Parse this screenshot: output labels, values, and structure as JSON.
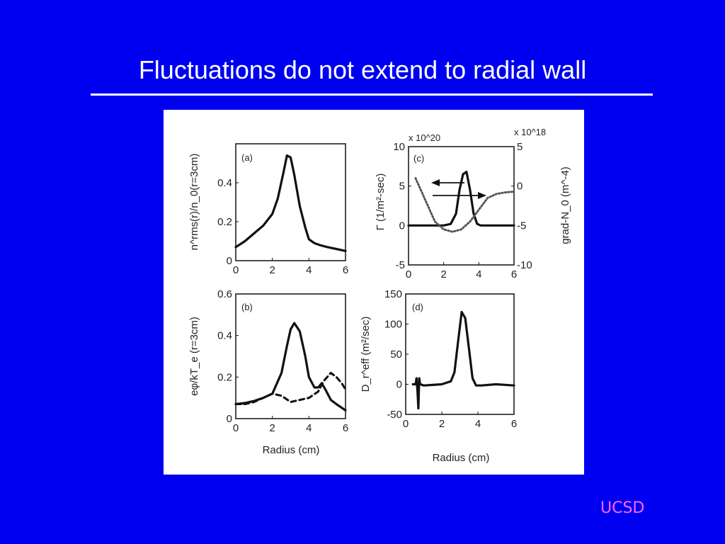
{
  "slide": {
    "title": "Fluctuations do not extend to radial wall",
    "footer_logo": "UCSD",
    "colors": {
      "background": "#0000f0",
      "title": "#ffffff",
      "logo": "#ff66ff",
      "panel": "#ffffff"
    }
  },
  "chart_data": [
    {
      "panel_label": "(a)",
      "type": "line",
      "xlabel": "",
      "ylabel": "n^rms(r)/n_0(r=3cm)",
      "xlim": [
        0,
        6
      ],
      "ylim": [
        0,
        0.6
      ],
      "xticks": [
        0,
        2,
        4,
        6
      ],
      "yticks": [
        0,
        0.2,
        0.4
      ],
      "xtick_labels": [
        "0",
        "2",
        "4",
        "6"
      ],
      "ytick_labels": [
        "0",
        "0.2",
        "0.4"
      ],
      "series": [
        {
          "style": "solid",
          "x": [
            0,
            0.5,
            1,
            1.5,
            2,
            2.3,
            2.6,
            2.8,
            3,
            3.2,
            3.5,
            3.8,
            4,
            4.3,
            4.6,
            5,
            5.5,
            6
          ],
          "y": [
            0.07,
            0.1,
            0.14,
            0.18,
            0.24,
            0.32,
            0.45,
            0.54,
            0.53,
            0.44,
            0.28,
            0.17,
            0.11,
            0.09,
            0.08,
            0.07,
            0.06,
            0.05
          ]
        }
      ]
    },
    {
      "panel_label": "(b)",
      "type": "line",
      "xlabel": "Radius (cm)",
      "ylabel": "eφ/kT_e (r=3cm)",
      "xlim": [
        0,
        6
      ],
      "ylim": [
        0,
        0.6
      ],
      "xticks": [
        0,
        2,
        4,
        6
      ],
      "yticks": [
        0,
        0.2,
        0.4,
        0.6
      ],
      "xtick_labels": [
        "0",
        "2",
        "4",
        "6"
      ],
      "ytick_labels": [
        "0",
        "0.2",
        "0.4",
        "0.6"
      ],
      "series": [
        {
          "style": "solid",
          "x": [
            0,
            0.5,
            1,
            1.5,
            2,
            2.5,
            2.8,
            3,
            3.2,
            3.5,
            3.8,
            4,
            4.3,
            4.5,
            4.7,
            4.9,
            5.2,
            5.5,
            6
          ],
          "y": [
            0.07,
            0.075,
            0.085,
            0.1,
            0.12,
            0.22,
            0.35,
            0.43,
            0.46,
            0.42,
            0.3,
            0.2,
            0.15,
            0.15,
            0.17,
            0.14,
            0.09,
            0.07,
            0.04
          ]
        },
        {
          "style": "dashed",
          "x": [
            0,
            0.5,
            1,
            1.5,
            2,
            2.5,
            3,
            3.5,
            4,
            4.5,
            4.8,
            5,
            5.2,
            5.5,
            5.8,
            6
          ],
          "y": [
            0.07,
            0.07,
            0.08,
            0.1,
            0.12,
            0.11,
            0.08,
            0.09,
            0.1,
            0.13,
            0.18,
            0.2,
            0.22,
            0.2,
            0.17,
            0.14
          ]
        }
      ]
    },
    {
      "panel_label": "(c)",
      "type": "line",
      "xlabel": "",
      "ylabel": "Γ (1/m²-sec)",
      "y2label": "grad-N_0 (m^-4)",
      "exponent_left": "x 10^20",
      "exponent_right": "x 10^18",
      "xlim": [
        0,
        6
      ],
      "ylim": [
        -5,
        10
      ],
      "y2lim": [
        -10,
        5
      ],
      "xticks": [
        0,
        2,
        4,
        6
      ],
      "yticks": [
        -5,
        0,
        5,
        10
      ],
      "y2ticks": [
        -10,
        -5,
        0,
        5
      ],
      "xtick_labels": [
        "0",
        "2",
        "4",
        "6"
      ],
      "ytick_labels": [
        "-5",
        "0",
        "5",
        "10"
      ],
      "y2tick_labels": [
        "-10",
        "-5",
        "0",
        "5"
      ],
      "series": [
        {
          "style": "solid",
          "axis": "left",
          "x": [
            0,
            1,
            2,
            2.4,
            2.7,
            2.9,
            3.1,
            3.3,
            3.5,
            3.7,
            3.9,
            4.1,
            5,
            6
          ],
          "y": [
            0,
            0,
            0,
            0.2,
            1.5,
            4.5,
            6.5,
            6.8,
            4.5,
            1.5,
            0.2,
            0,
            0,
            0
          ]
        },
        {
          "style": "dotted",
          "axis": "right",
          "x": [
            0.4,
            0.7,
            1,
            1.5,
            2,
            2.5,
            3,
            3.5,
            4,
            4.5,
            5,
            5.5,
            6
          ],
          "y": [
            1,
            -0.5,
            -2,
            -4.5,
            -5.5,
            -5.8,
            -5.5,
            -4.5,
            -3,
            -1.5,
            -1,
            -0.8,
            -0.7
          ]
        }
      ]
    },
    {
      "panel_label": "(d)",
      "type": "line",
      "xlabel": "Radius (cm)",
      "ylabel": "D_r^eff (m²/sec)",
      "xlim": [
        0,
        6
      ],
      "ylim": [
        -50,
        150
      ],
      "xticks": [
        0,
        2,
        4,
        6
      ],
      "yticks": [
        -50,
        0,
        50,
        100,
        150
      ],
      "xtick_labels": [
        "0",
        "2",
        "4",
        "6"
      ],
      "ytick_labels": [
        "-50",
        "0",
        "50",
        "100",
        "150"
      ],
      "series": [
        {
          "style": "solid",
          "x": [
            0.4,
            0.55,
            0.6,
            0.65,
            0.7,
            0.75,
            0.8,
            1,
            1.5,
            2,
            2.5,
            2.7,
            2.9,
            3.1,
            3.3,
            3.5,
            3.7,
            3.9,
            4.2,
            5,
            6
          ],
          "y": [
            0,
            0,
            10,
            -10,
            -40,
            10,
            0,
            -2,
            -1,
            0,
            5,
            20,
            70,
            120,
            110,
            60,
            10,
            -2,
            -2,
            0,
            -2
          ]
        }
      ]
    }
  ]
}
